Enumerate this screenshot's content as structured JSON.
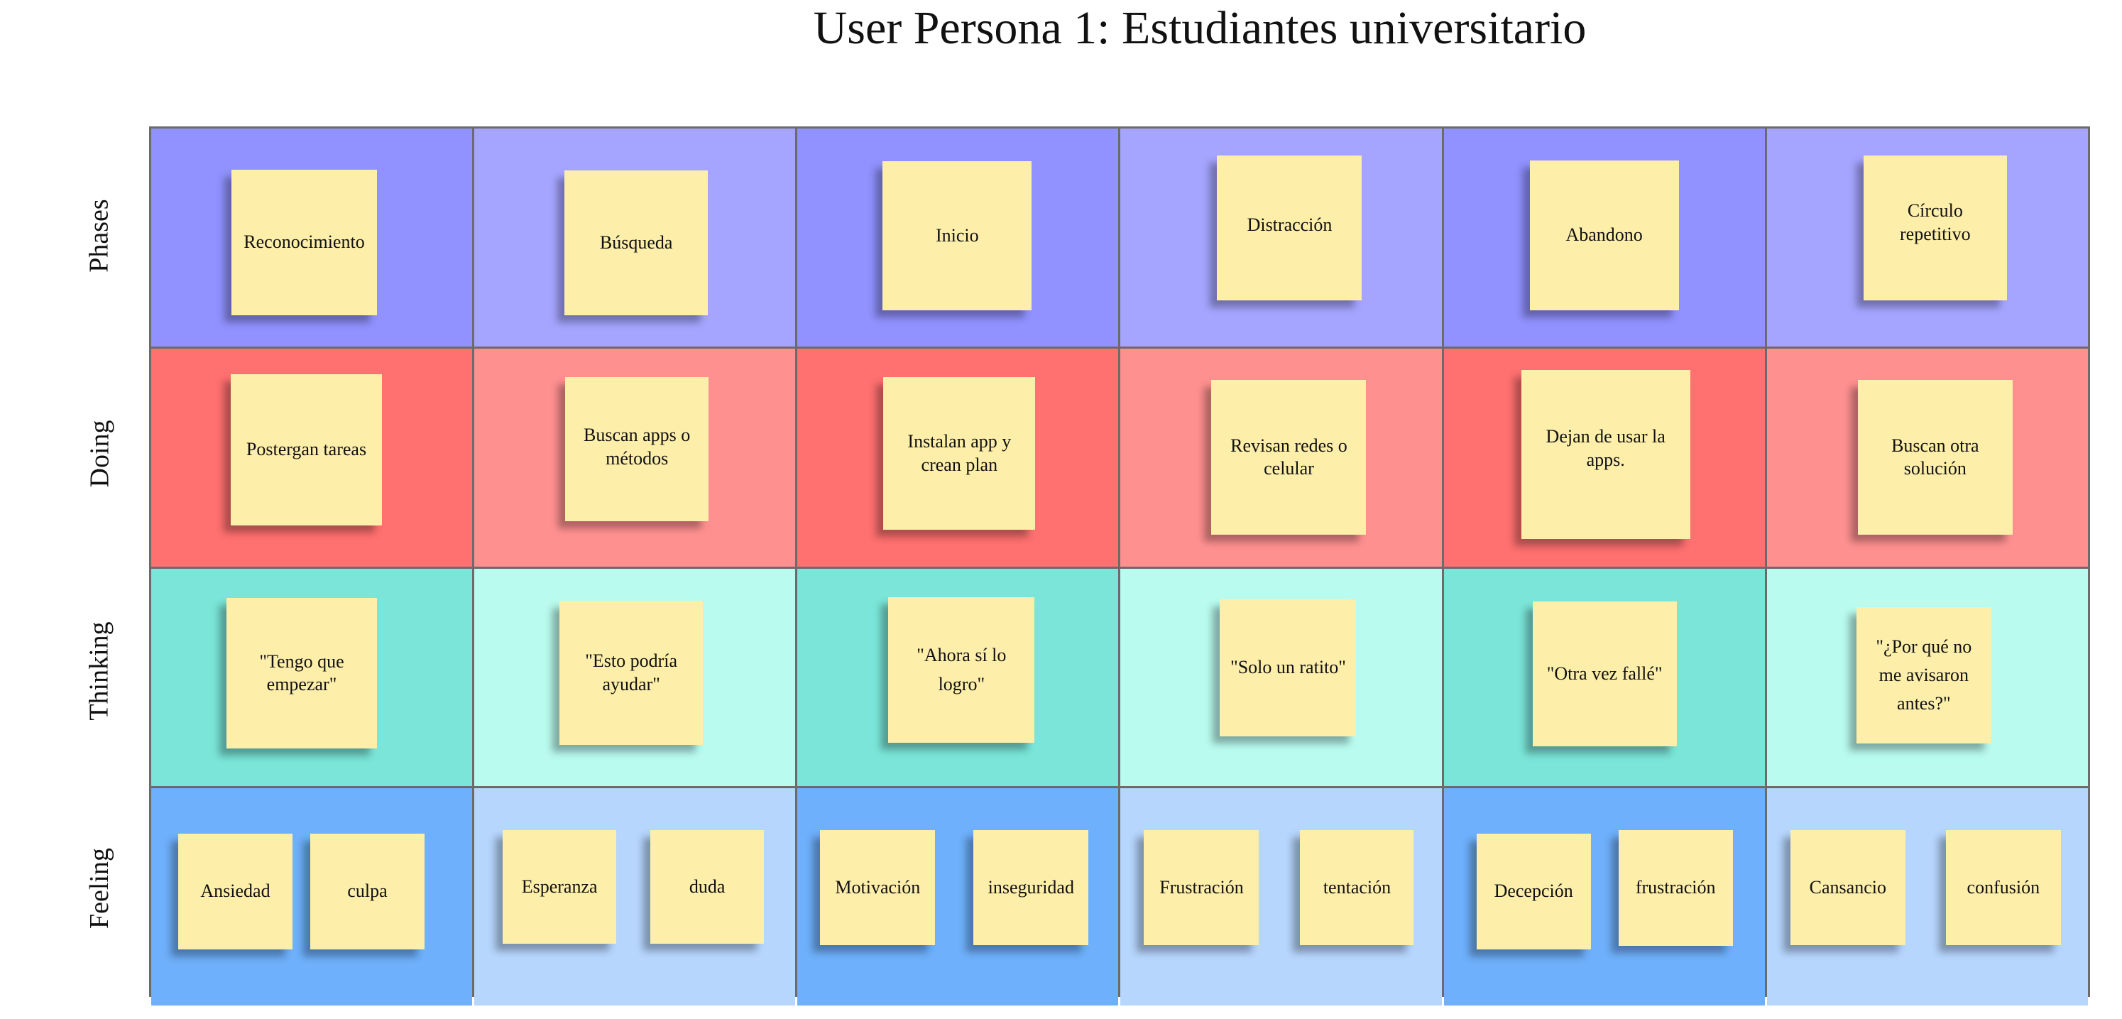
{
  "title": "User Persona 1: Estudiantes universitario",
  "rows": [
    {
      "label": "Phases",
      "colors": [
        "#9191ff",
        "#a5a5ff",
        "#9191ff",
        "#a5a5ff",
        "#9191ff",
        "#a5a5ff"
      ],
      "notes": [
        [
          "Reconocimiento"
        ],
        [
          "Búsqueda"
        ],
        [
          "Inicio"
        ],
        [
          "Distracción"
        ],
        [
          "Abandono"
        ],
        [
          "Círculo repetitivo"
        ]
      ]
    },
    {
      "label": "Doing",
      "colors": [
        "#ff7070",
        "#ff9090",
        "#ff7070",
        "#ff9090",
        "#ff7070",
        "#ff9090"
      ],
      "notes": [
        [
          "Postergan tareas"
        ],
        [
          "Buscan apps o métodos"
        ],
        [
          "Instalan app y crean plan"
        ],
        [
          "Revisan redes o celular"
        ],
        [
          "Dejan de usar la apps."
        ],
        [
          "Buscan otra solución"
        ]
      ]
    },
    {
      "label": "Thinking",
      "colors": [
        "#7ae5d8",
        "#b9fbef",
        "#7ae5d8",
        "#b9fbef",
        "#7ae5d8",
        "#b9fbef"
      ],
      "notes": [
        [
          "\"Tengo que empezar\""
        ],
        [
          "\"Esto podría ayudar\""
        ],
        [
          "\"Ahora sí lo logro\""
        ],
        [
          "\"Solo un ratito\""
        ],
        [
          "\"Otra vez fallé\""
        ],
        [
          "\"¿Por qué no me avisaron antes?\""
        ]
      ]
    },
    {
      "label": "Feeling",
      "colors": [
        "#6eb0fb",
        "#b6d6fd",
        "#6eb0fb",
        "#b6d6fd",
        "#6eb0fb",
        "#b6d6fd"
      ],
      "notes": [
        [
          "Ansiedad",
          "culpa"
        ],
        [
          "Esperanza",
          "duda"
        ],
        [
          "Motivación",
          "inseguridad"
        ],
        [
          "Frustración",
          "tentación"
        ],
        [
          "Decepción",
          "frustración"
        ],
        [
          "Cansancio",
          "confusión"
        ]
      ]
    }
  ]
}
